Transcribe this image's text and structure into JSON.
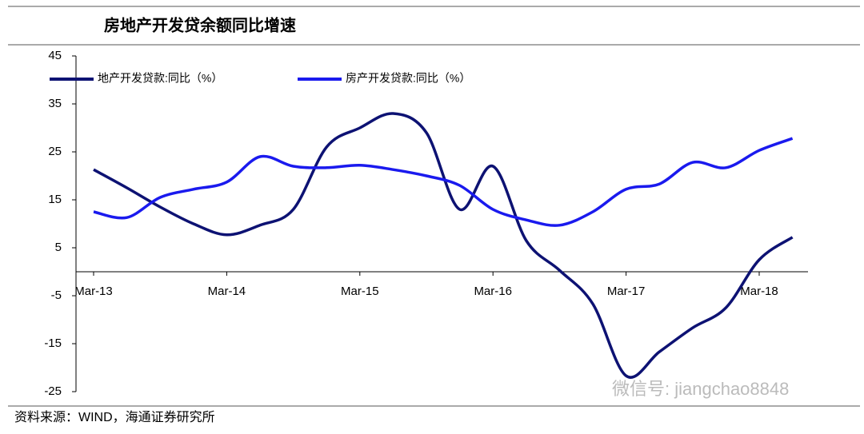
{
  "chart_data": {
    "type": "line",
    "title": "房地产开发贷余额同比增速",
    "source": "资料来源：WIND，海通证券研究所",
    "watermark": "微信号: jiangchao8848",
    "categories": [
      "Mar-13",
      null,
      null,
      null,
      "Mar-14",
      null,
      null,
      null,
      "Mar-15",
      null,
      null,
      null,
      "Mar-16",
      null,
      null,
      null,
      "Mar-17",
      null,
      null,
      null,
      "Mar-18",
      null
    ],
    "series": [
      {
        "name": "地产开发贷款:同比（%）",
        "color": "#0d1273",
        "values": [
          21.3,
          17.5,
          13.5,
          10,
          7.7,
          9.7,
          13,
          26,
          30,
          33,
          29,
          13,
          22,
          6.5,
          0.3,
          -6.7,
          -21.7,
          -16.7,
          -11.7,
          -7.5,
          2.5,
          7.2
        ]
      },
      {
        "name": "房产开发贷款:同比（%）",
        "color": "#1a1aee",
        "values": [
          12.5,
          11.3,
          15.5,
          17.2,
          18.7,
          24,
          22,
          21.7,
          22.2,
          21.3,
          20,
          18,
          13,
          10.8,
          9.7,
          12.5,
          17.2,
          18.3,
          22.8,
          21.7,
          25.3,
          27.8
        ]
      }
    ],
    "ylim": [
      -25,
      45
    ],
    "yticks": [
      -25,
      -15,
      -5,
      5,
      15,
      25,
      35,
      45
    ]
  }
}
